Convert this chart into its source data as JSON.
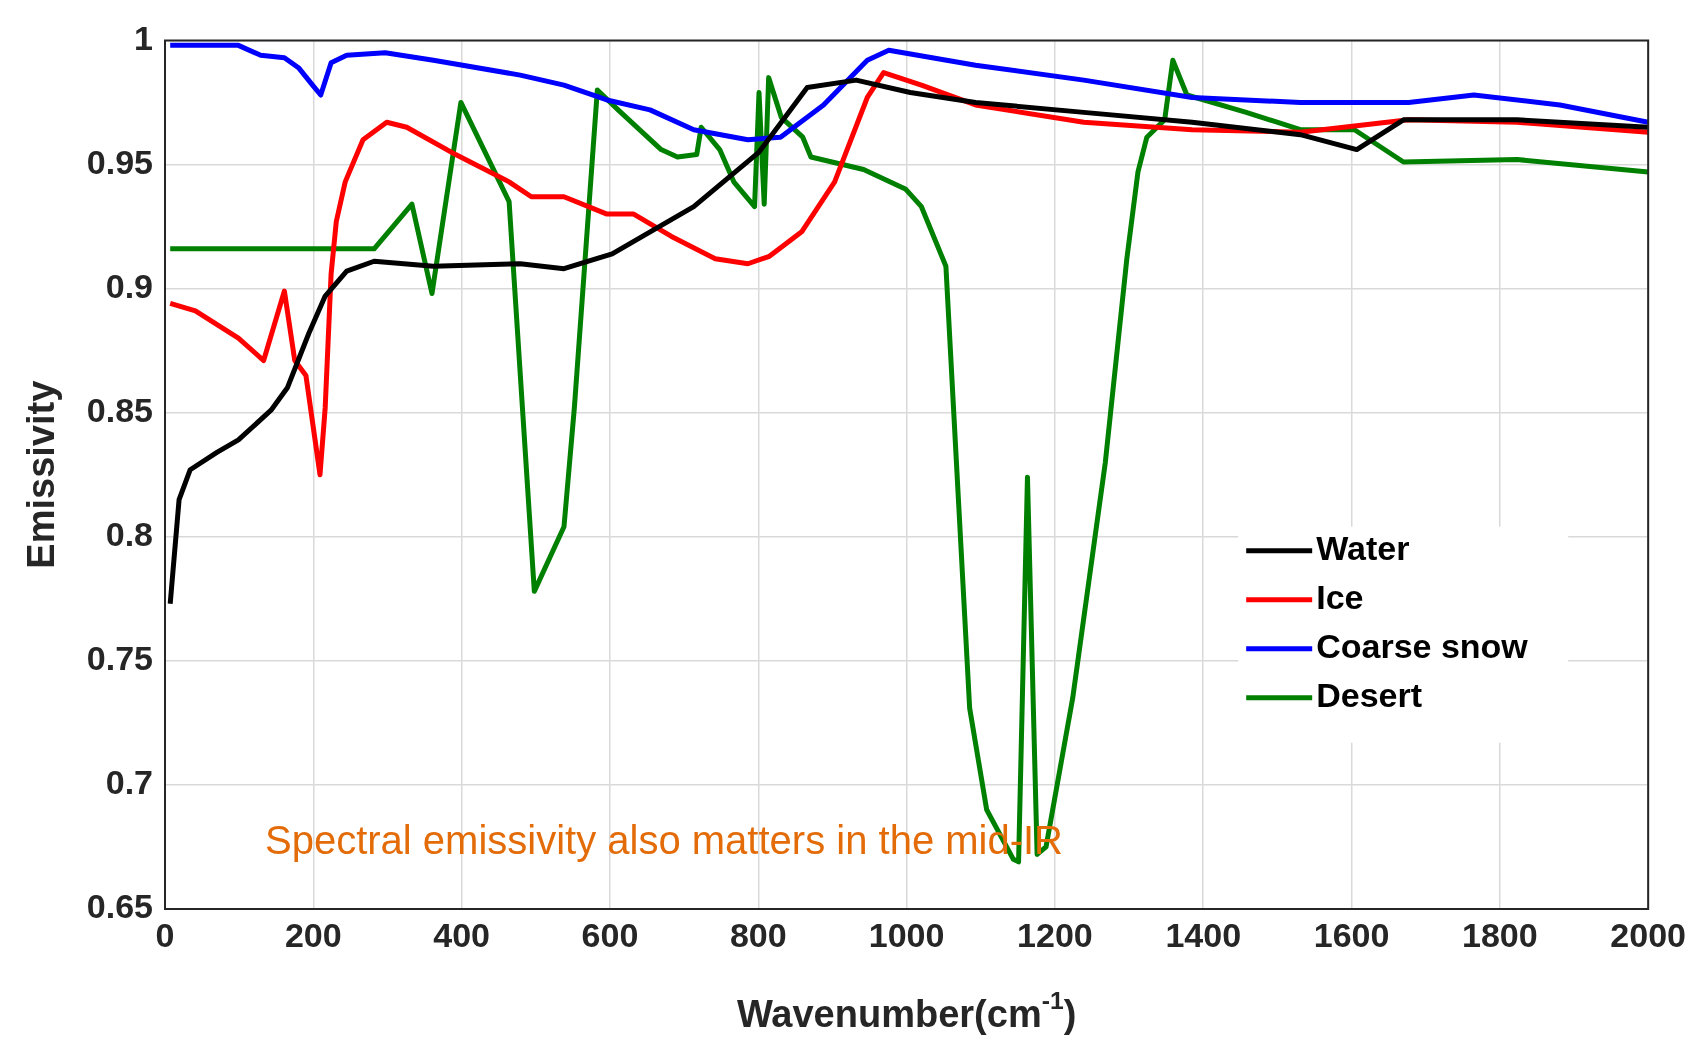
{
  "chart_data": {
    "type": "line",
    "xlabel": "Wavenumber(cm$^{-1}$)",
    "ylabel": "Emissivity",
    "annotations": [
      "Spectral emissivity also matters in the mid-IR"
    ],
    "xlim": [
      0,
      2000
    ],
    "xticks": [
      0,
      200,
      400,
      600,
      800,
      1000,
      1200,
      1400,
      1600,
      1800,
      2000
    ],
    "ylim": [
      0.65,
      1
    ],
    "yticks": [
      0.65,
      0.7,
      0.75,
      0.8,
      0.85,
      0.9,
      0.95,
      1
    ],
    "grid": true,
    "legend": "right",
    "line_style": "solid",
    "marker": "none",
    "series": [
      {
        "name": "Water",
        "color": "#000000",
        "x": [
          7,
          19,
          34,
          70,
          99,
          121,
          143,
          165,
          194,
          216,
          245,
          282,
          362,
          479,
          538,
          603,
          713,
          801,
          866,
          932,
          1005,
          1093,
          1239,
          1385,
          1531,
          1607,
          1670,
          1823,
          2000
        ],
        "values": [
          0.773,
          0.815,
          0.827,
          0.834,
          0.839,
          0.845,
          0.851,
          0.86,
          0.882,
          0.897,
          0.907,
          0.911,
          0.909,
          0.91,
          0.908,
          0.914,
          0.933,
          0.955,
          0.981,
          0.984,
          0.979,
          0.975,
          0.971,
          0.967,
          0.962,
          0.956,
          0.968,
          0.968,
          0.965
        ]
      },
      {
        "name": "Ice",
        "color": "#ff0000",
        "x": [
          7,
          41,
          99,
          133,
          161,
          175,
          190,
          209,
          216,
          224,
          231,
          243,
          267,
          299,
          326,
          392,
          464,
          494,
          538,
          596,
          632,
          683,
          742,
          786,
          815,
          859,
          903,
          947,
          969,
          1020,
          1093,
          1239,
          1385,
          1531,
          1677,
          1823,
          2000
        ],
        "values": [
          0.894,
          0.891,
          0.88,
          0.871,
          0.899,
          0.871,
          0.865,
          0.825,
          0.852,
          0.906,
          0.927,
          0.943,
          0.96,
          0.967,
          0.965,
          0.954,
          0.943,
          0.937,
          0.937,
          0.93,
          0.93,
          0.921,
          0.912,
          0.91,
          0.913,
          0.923,
          0.943,
          0.977,
          0.987,
          0.982,
          0.974,
          0.967,
          0.964,
          0.963,
          0.968,
          0.967,
          0.963
        ]
      },
      {
        "name": "Coarse snow",
        "color": "#0000ff",
        "x": [
          7,
          99,
          129,
          161,
          180,
          199,
          210,
          224,
          245,
          297,
          362,
          479,
          538,
          596,
          654,
          713,
          786,
          830,
          888,
          947,
          976,
          1093,
          1239,
          1385,
          1531,
          1677,
          1765,
          1881,
          2000
        ],
        "values": [
          0.998,
          0.998,
          0.994,
          0.993,
          0.989,
          0.982,
          0.978,
          0.991,
          0.994,
          0.995,
          0.992,
          0.986,
          0.982,
          0.976,
          0.972,
          0.964,
          0.96,
          0.961,
          0.974,
          0.992,
          0.996,
          0.99,
          0.984,
          0.977,
          0.975,
          0.975,
          0.978,
          0.974,
          0.967
        ]
      },
      {
        "name": "Desert",
        "color": "#008000",
        "x": [
          7,
          282,
          333,
          360,
          399,
          464,
          498,
          538,
          552,
          583,
          611,
          669,
          691,
          717,
          723,
          748,
          767,
          795,
          801,
          808,
          814,
          831,
          860,
          871,
          942,
          999,
          1020,
          1053,
          1085,
          1108,
          1144,
          1151,
          1163,
          1176,
          1188,
          1224,
          1268,
          1297,
          1312,
          1324,
          1348,
          1359,
          1378,
          1458,
          1531,
          1604,
          1670,
          1823,
          2000
        ],
        "values": [
          0.916,
          0.916,
          0.934,
          0.898,
          0.975,
          0.935,
          0.778,
          0.804,
          0.852,
          0.98,
          0.972,
          0.956,
          0.953,
          0.954,
          0.965,
          0.956,
          0.943,
          0.933,
          0.979,
          0.934,
          0.985,
          0.969,
          0.961,
          0.953,
          0.948,
          0.94,
          0.933,
          0.909,
          0.731,
          0.69,
          0.67,
          0.669,
          0.824,
          0.672,
          0.675,
          0.735,
          0.83,
          0.912,
          0.947,
          0.961,
          0.968,
          0.992,
          0.978,
          0.971,
          0.964,
          0.964,
          0.951,
          0.952,
          0.947
        ]
      }
    ]
  }
}
